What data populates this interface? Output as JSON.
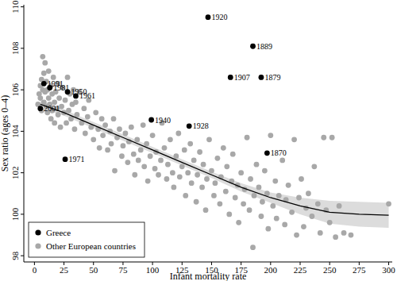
{
  "chart_data": {
    "type": "scatter",
    "xlabel": "Infant mortality rate",
    "ylabel": "Sex ratio (ages 0–4)",
    "xlim": [
      -9,
      303
    ],
    "ylim": [
      97.7,
      110.1
    ],
    "xticks": [
      0,
      25,
      50,
      75,
      100,
      125,
      150,
      175,
      200,
      225,
      250,
      275,
      300
    ],
    "yticks": [
      98,
      100,
      102,
      104,
      106,
      108,
      110
    ],
    "grid": false,
    "legend": "lower left",
    "series": [
      {
        "name": "Greece",
        "type": "scatter",
        "color": "#000000",
        "marker": "circle",
        "labels": [
          "1920",
          "1889",
          "1907",
          "1879",
          "1870",
          "1928",
          "1940",
          "1971",
          "1961",
          "1950",
          "1981",
          "1991",
          "2001"
        ],
        "x": [
          147,
          185,
          166,
          192,
          197,
          131,
          99,
          26,
          35,
          28,
          13,
          8,
          5
        ],
        "values": [
          109.5,
          108.1,
          106.6,
          106.6,
          102.95,
          104.25,
          104.55,
          102.65,
          105.7,
          105.9,
          106.1,
          106.3,
          105.1
        ]
      },
      {
        "name": "Other European countries",
        "type": "scatter",
        "color": "#a8a8a8",
        "marker": "circle",
        "x": [
          3,
          4,
          5,
          5,
          6,
          6,
          7,
          7,
          8,
          8,
          9,
          9,
          10,
          10,
          11,
          11,
          12,
          12,
          13,
          14,
          14,
          15,
          15,
          16,
          17,
          17,
          18,
          19,
          20,
          20,
          21,
          22,
          23,
          24,
          25,
          26,
          27,
          28,
          29,
          30,
          31,
          32,
          33,
          34,
          35,
          36,
          38,
          40,
          42,
          43,
          45,
          46,
          48,
          50,
          52,
          54,
          55,
          57,
          58,
          60,
          62,
          64,
          65,
          67,
          68,
          70,
          72,
          74,
          75,
          77,
          79,
          80,
          82,
          84,
          85,
          87,
          88,
          90,
          92,
          93,
          95,
          96,
          98,
          100,
          102,
          103,
          105,
          107,
          108,
          110,
          112,
          113,
          115,
          117,
          118,
          120,
          122,
          123,
          125,
          127,
          128,
          130,
          132,
          133,
          135,
          137,
          138,
          140,
          142,
          143,
          145,
          146,
          148,
          150,
          152,
          153,
          155,
          157,
          158,
          160,
          162,
          163,
          165,
          167,
          168,
          170,
          172,
          173,
          175,
          177,
          178,
          180,
          182,
          183,
          185,
          186,
          188,
          190,
          192,
          193,
          195,
          197,
          198,
          200,
          202,
          204,
          205,
          207,
          210,
          212,
          213,
          215,
          218,
          220,
          222,
          224,
          226,
          228,
          230,
          232,
          235,
          237,
          240,
          242,
          245,
          247,
          250,
          252,
          255,
          258,
          262,
          268,
          300
        ],
        "values": [
          105.3,
          105.8,
          106.2,
          105.6,
          106.5,
          105.0,
          107.6,
          106.0,
          105.4,
          106.8,
          107.3,
          105.9,
          106.4,
          105.2,
          106.0,
          104.9,
          105.6,
          106.9,
          105.3,
          106.2,
          104.6,
          105.8,
          105.0,
          106.6,
          105.4,
          104.4,
          105.9,
          105.1,
          106.3,
          104.8,
          105.6,
          104.2,
          105.2,
          106.1,
          104.9,
          105.5,
          104.4,
          106.6,
          105.0,
          105.8,
          104.6,
          105.3,
          106.0,
          104.1,
          105.4,
          104.8,
          105.9,
          104.4,
          105.1,
          103.9,
          104.7,
          105.5,
          104.2,
          103.6,
          104.9,
          104.1,
          103.2,
          104.6,
          103.8,
          104.3,
          103.1,
          104.0,
          103.4,
          104.6,
          102.1,
          103.7,
          104.1,
          102.8,
          103.3,
          103.9,
          102.5,
          103.5,
          104.2,
          102.9,
          101.9,
          103.6,
          102.6,
          103.1,
          104.3,
          102.3,
          103.4,
          101.6,
          102.8,
          103.8,
          102.2,
          103.0,
          101.9,
          102.6,
          104.4,
          103.2,
          101.7,
          102.4,
          103.6,
          102.0,
          101.3,
          102.8,
          103.9,
          101.8,
          102.3,
          103.1,
          100.9,
          102.0,
          103.4,
          101.5,
          102.6,
          100.6,
          101.9,
          103.0,
          101.3,
          102.4,
          100.2,
          101.7,
          103.6,
          102.1,
          100.9,
          101.5,
          102.7,
          100.5,
          101.8,
          103.2,
          101.1,
          102.3,
          100.0,
          101.6,
          102.9,
          100.8,
          101.4,
          99.6,
          102.0,
          100.5,
          101.2,
          103.7,
          100.2,
          101.7,
          98.4,
          100.9,
          102.4,
          101.3,
          99.9,
          100.6,
          102.1,
          101.0,
          99.3,
          103.8,
          100.4,
          101.6,
          99.8,
          100.9,
          102.6,
          99.5,
          100.7,
          101.4,
          100.1,
          103.6,
          99.0,
          100.8,
          101.7,
          99.4,
          100.3,
          101.0,
          99.9,
          102.3,
          100.5,
          99.1,
          103.7,
          100.2,
          99.6,
          103.7,
          98.9,
          100.4,
          99.1,
          99.0,
          100.5
        ]
      },
      {
        "type": "line",
        "color": "#000000",
        "line_style": "solid",
        "x": [
          5,
          25,
          50,
          75,
          100,
          125,
          150,
          175,
          200,
          225,
          250,
          275,
          300
        ],
        "values": [
          105.3,
          104.9,
          104.3,
          103.7,
          103.1,
          102.5,
          101.9,
          101.3,
          100.8,
          100.4,
          100.1,
          100.0,
          99.95
        ],
        "lower": [
          105.1,
          104.75,
          104.15,
          103.55,
          102.95,
          102.35,
          101.75,
          101.1,
          100.55,
          100.0,
          99.55,
          99.4,
          99.35
        ],
        "upper": [
          105.5,
          105.05,
          104.45,
          103.85,
          103.25,
          102.65,
          102.05,
          101.5,
          101.05,
          100.8,
          100.65,
          100.6,
          100.55
        ]
      }
    ]
  }
}
